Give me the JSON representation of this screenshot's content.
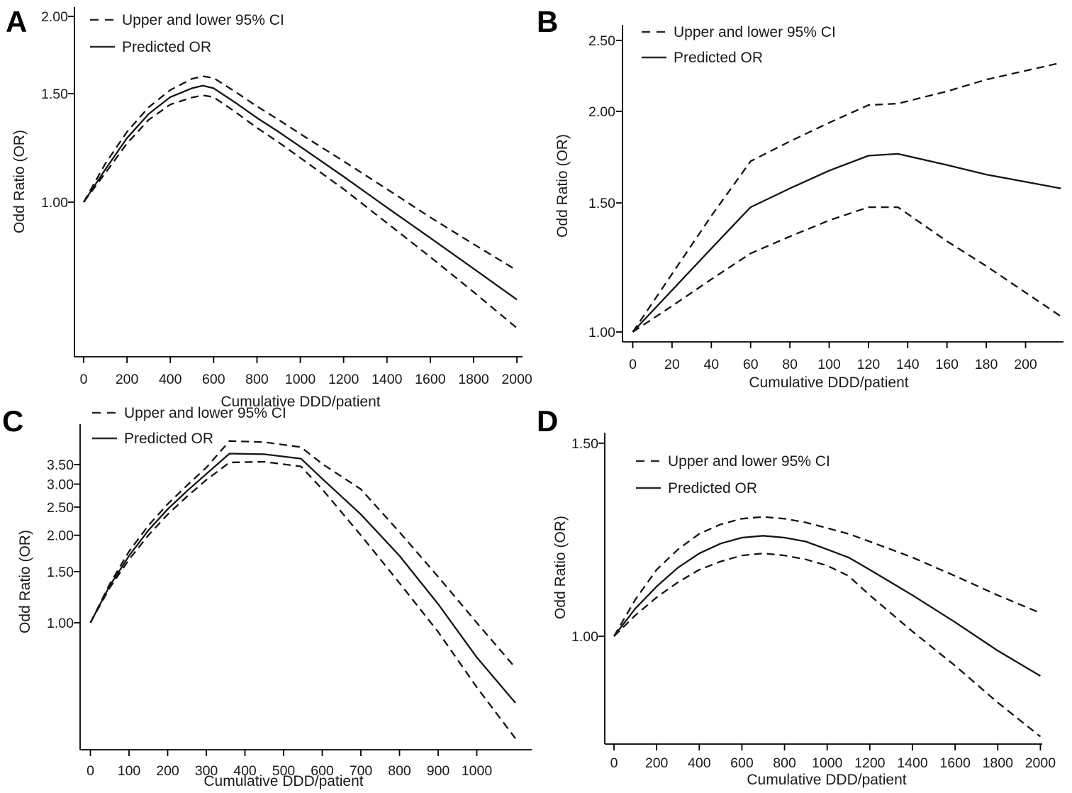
{
  "figure": {
    "background": "#ffffff",
    "line_color": "#141414",
    "xlabel": "Cumulative DDD/patient",
    "ylabel": "Odd Ratio (OR)",
    "legend": [
      "Upper and lower 95% CI",
      "Predicted OR"
    ]
  },
  "chart_data": [
    {
      "id": "A",
      "type": "line",
      "panel_label": "A",
      "xlabel": "Cumulative DDD/patient",
      "ylabel": "Odd Ratio (OR)",
      "y_scale": "log",
      "legend": [
        "Upper and lower 95% CI",
        "Predicted OR"
      ],
      "legend_position": "top-left-inside",
      "grid": false,
      "xlim": [
        0,
        2026
      ],
      "ylim": [
        0.56,
        2.07
      ],
      "x_ticks": [
        0,
        200,
        400,
        600,
        800,
        1000,
        1200,
        1400,
        1600,
        1800,
        2000
      ],
      "y_ticks": [
        {
          "label": "2.00",
          "value": 2.0
        },
        {
          "label": "1.50",
          "value": 1.5
        },
        {
          "label": "1.00",
          "value": 1.0
        }
      ],
      "x": [
        0,
        100,
        200,
        300,
        400,
        500,
        550,
        600,
        700,
        800,
        900,
        1000,
        1200,
        1400,
        1600,
        1800,
        2000
      ],
      "series": [
        {
          "name": "Upper 95% CI",
          "style": "dashed",
          "values": [
            1.0,
            1.155,
            1.3,
            1.425,
            1.52,
            1.585,
            1.6,
            1.59,
            1.51,
            1.43,
            1.36,
            1.29,
            1.165,
            1.05,
            0.945,
            0.855,
            0.775
          ]
        },
        {
          "name": "Predicted OR",
          "style": "solid",
          "values": [
            1.0,
            1.13,
            1.27,
            1.39,
            1.48,
            1.53,
            1.545,
            1.53,
            1.45,
            1.37,
            1.3,
            1.23,
            1.1,
            0.98,
            0.875,
            0.78,
            0.695
          ]
        },
        {
          "name": "Lower 95% CI",
          "style": "dashed",
          "values": [
            1.0,
            1.115,
            1.245,
            1.36,
            1.44,
            1.478,
            1.49,
            1.48,
            1.4,
            1.32,
            1.25,
            1.18,
            1.05,
            0.925,
            0.815,
            0.715,
            0.625
          ]
        }
      ]
    },
    {
      "id": "B",
      "type": "line",
      "panel_label": "B",
      "xlabel": "Cumulative DDD/patient",
      "ylabel": "Odd Ratio (OR)",
      "y_scale": "log",
      "legend": [
        "Upper and lower 95% CI",
        "Predicted OR"
      ],
      "legend_position": "top-left-inside",
      "grid": false,
      "xlim": [
        0,
        219
      ],
      "ylim": [
        0.97,
        2.6
      ],
      "x_ticks": [
        0,
        20,
        40,
        60,
        80,
        100,
        120,
        140,
        160,
        180,
        200
      ],
      "y_ticks": [
        {
          "label": "2.50",
          "value": 2.5
        },
        {
          "label": "2.00",
          "value": 2.0
        },
        {
          "label": "1.50",
          "value": 1.5
        },
        {
          "label": "1.00",
          "value": 1.0
        }
      ],
      "x": [
        0,
        20,
        40,
        60,
        80,
        100,
        120,
        135,
        160,
        180,
        218
      ],
      "series": [
        {
          "name": "Upper 95% CI",
          "style": "dashed",
          "values": [
            1.0,
            1.2,
            1.44,
            1.71,
            1.82,
            1.93,
            2.04,
            2.05,
            2.13,
            2.21,
            2.33
          ]
        },
        {
          "name": "Predicted OR",
          "style": "solid",
          "values": [
            1.0,
            1.14,
            1.3,
            1.48,
            1.57,
            1.66,
            1.74,
            1.75,
            1.69,
            1.64,
            1.57
          ]
        },
        {
          "name": "Lower 95% CI",
          "style": "dashed",
          "values": [
            1.0,
            1.085,
            1.18,
            1.28,
            1.35,
            1.42,
            1.48,
            1.48,
            1.33,
            1.23,
            1.05
          ]
        }
      ]
    },
    {
      "id": "C",
      "type": "line",
      "panel_label": "C",
      "xlabel": "Cumulative DDD/patient",
      "ylabel": "Odd Ratio (OR)",
      "y_scale": "log",
      "legend": [
        "Upper and lower 95% CI",
        "Predicted OR"
      ],
      "legend_position": "above-top-left",
      "grid": false,
      "xlim": [
        0,
        1142
      ],
      "ylim": [
        0.37,
        4.5
      ],
      "x_ticks": [
        0,
        100,
        200,
        300,
        400,
        500,
        600,
        700,
        800,
        900,
        1000
      ],
      "y_ticks": [
        {
          "label": "3.50",
          "value": 3.5
        },
        {
          "label": "3.00",
          "value": 3.0
        },
        {
          "label": "2.50",
          "value": 2.5
        },
        {
          "label": "2.00",
          "value": 2.0
        },
        {
          "label": "1.50",
          "value": 1.5
        },
        {
          "label": "1.00",
          "value": 1.0
        }
      ],
      "x": [
        0,
        50,
        100,
        150,
        200,
        250,
        300,
        360,
        450,
        545,
        600,
        700,
        800,
        900,
        1000,
        1100
      ],
      "series": [
        {
          "name": "Upper 95% CI",
          "style": "dashed",
          "values": [
            1.0,
            1.36,
            1.76,
            2.16,
            2.56,
            2.97,
            3.42,
            4.22,
            4.18,
            4.02,
            3.52,
            2.88,
            2.05,
            1.44,
            1.0,
            0.7
          ]
        },
        {
          "name": "Predicted OR",
          "style": "solid",
          "values": [
            1.0,
            1.34,
            1.7,
            2.08,
            2.46,
            2.84,
            3.25,
            3.82,
            3.8,
            3.67,
            3.13,
            2.36,
            1.7,
            1.16,
            0.76,
            0.53
          ]
        },
        {
          "name": "Lower 95% CI",
          "style": "dashed",
          "values": [
            1.0,
            1.32,
            1.65,
            2.0,
            2.36,
            2.72,
            3.1,
            3.56,
            3.58,
            3.45,
            2.88,
            2.0,
            1.37,
            0.93,
            0.6,
            0.4
          ]
        }
      ]
    },
    {
      "id": "D",
      "type": "line",
      "panel_label": "D",
      "xlabel": "Cumulative DDD/patient",
      "ylabel": "Odd Ratio (OR)",
      "y_scale": "log",
      "legend": [
        "Upper and lower 95% CI",
        "Predicted OR"
      ],
      "legend_position": "top-left-inside",
      "grid": false,
      "xlim": [
        0,
        2008
      ],
      "ylim": [
        0.8,
        1.53
      ],
      "x_ticks": [
        0,
        200,
        400,
        600,
        800,
        1000,
        1200,
        1400,
        1600,
        1800,
        2000
      ],
      "y_ticks": [
        {
          "label": "1.50",
          "value": 1.5
        },
        {
          "label": "1.00",
          "value": 1.0
        }
      ],
      "x": [
        0,
        100,
        200,
        300,
        400,
        500,
        600,
        700,
        800,
        900,
        1000,
        1100,
        1200,
        1400,
        1600,
        1800,
        2000
      ],
      "series": [
        {
          "name": "Upper 95% CI",
          "style": "dashed",
          "values": [
            1.0,
            1.08,
            1.15,
            1.2,
            1.24,
            1.265,
            1.28,
            1.285,
            1.28,
            1.27,
            1.255,
            1.24,
            1.22,
            1.18,
            1.135,
            1.09,
            1.05
          ]
        },
        {
          "name": "Predicted OR",
          "style": "solid",
          "values": [
            1.0,
            1.06,
            1.11,
            1.155,
            1.19,
            1.215,
            1.23,
            1.235,
            1.23,
            1.22,
            1.2,
            1.18,
            1.15,
            1.09,
            1.03,
            0.97,
            0.92
          ]
        },
        {
          "name": "Lower 95% CI",
          "style": "dashed",
          "values": [
            1.0,
            1.045,
            1.085,
            1.12,
            1.15,
            1.17,
            1.185,
            1.19,
            1.185,
            1.175,
            1.16,
            1.135,
            1.09,
            1.01,
            0.94,
            0.87,
            0.81
          ]
        }
      ]
    }
  ]
}
